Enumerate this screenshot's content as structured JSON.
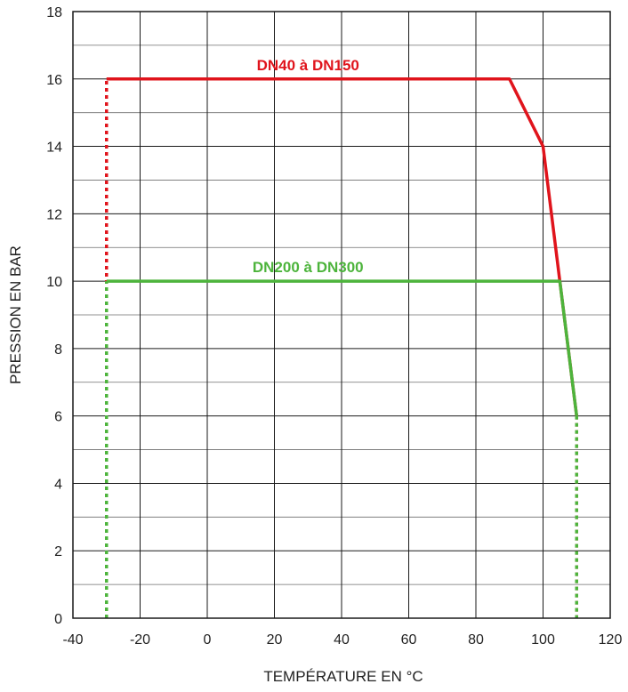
{
  "chart_data": {
    "type": "line",
    "title": "",
    "xlabel": "TEMPÉRATURE EN °C",
    "ylabel": "PRESSION EN BAR",
    "xlim": [
      -40,
      120
    ],
    "ylim": [
      0,
      18
    ],
    "x_ticks": [
      -40,
      -20,
      0,
      20,
      40,
      60,
      80,
      100,
      120
    ],
    "y_ticks": [
      0,
      2,
      4,
      6,
      8,
      10,
      12,
      14,
      16,
      18
    ],
    "grid": true,
    "minor_grid": true,
    "series": [
      {
        "name": "DN40 à DN150",
        "color": "#e0141c",
        "points": [
          [
            -30,
            16
          ],
          [
            90,
            16
          ],
          [
            100,
            14
          ],
          [
            105,
            10
          ],
          [
            110,
            6
          ]
        ],
        "dashed_legs": [
          [
            [
              -30,
              0
            ],
            [
              -30,
              16
            ]
          ],
          [
            [
              110,
              6
            ],
            [
              110,
              0
            ]
          ]
        ]
      },
      {
        "name": "DN200 à DN300",
        "color": "#4db43c",
        "points": [
          [
            -30,
            10
          ],
          [
            105,
            10
          ],
          [
            110,
            6
          ]
        ],
        "dashed_legs": [
          [
            [
              -30,
              0
            ],
            [
              -30,
              10
            ]
          ],
          [
            [
              110,
              6
            ],
            [
              110,
              0
            ]
          ]
        ]
      }
    ]
  }
}
